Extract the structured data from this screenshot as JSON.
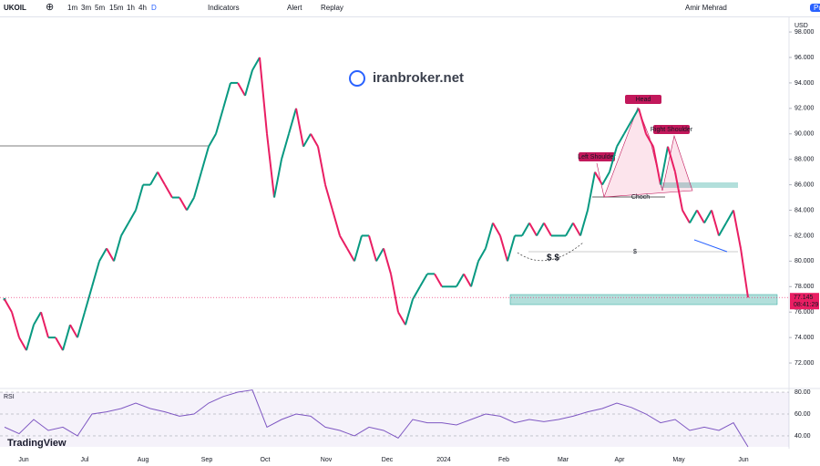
{
  "toolbar": {
    "symbol": "UKOIL",
    "timeframes": [
      "1m",
      "3m",
      "5m",
      "15m",
      "1h",
      "4h",
      "D"
    ],
    "indicators": "Indicators",
    "alert": "Alert",
    "replay": "Replay",
    "user": "Amir Mehrad",
    "publish": "Pu"
  },
  "watermark": "iranbroker.net",
  "brand": "TradingView",
  "chart_data": [
    {
      "type": "line",
      "currency": "USD",
      "up_color": "#089981",
      "down_color": "#e91e63",
      "values": [
        77,
        76,
        74,
        73,
        75,
        76,
        74,
        74,
        73,
        75,
        74,
        76,
        78,
        80,
        81,
        80,
        82,
        83,
        84,
        86,
        86,
        87,
        86,
        85,
        85,
        84,
        85,
        87,
        89,
        90,
        92,
        94,
        94,
        93,
        95,
        96,
        90,
        85,
        88,
        90,
        92,
        89,
        90,
        89,
        86,
        84,
        82,
        81,
        80,
        82,
        82,
        80,
        81,
        79,
        76,
        75,
        77,
        78,
        79,
        79,
        78,
        78,
        78,
        79,
        78,
        80,
        81,
        83,
        82,
        80,
        82,
        82,
        83,
        82,
        83,
        82,
        82,
        82,
        83,
        82,
        84,
        87,
        86,
        87,
        89,
        90,
        91,
        92,
        90,
        89,
        86,
        89,
        87,
        84,
        83,
        84,
        83,
        84,
        82,
        83,
        84,
        81,
        77.145
      ],
      "last_price": 77.145,
      "countdown": "08:41:29",
      "ylim": [
        70.07,
        99.08
      ],
      "yticks": [
        {
          "value": 72,
          "label": "72.000"
        },
        {
          "value": 74,
          "label": "74.000"
        },
        {
          "value": 76,
          "label": "76.000"
        },
        {
          "value": 78,
          "label": "78.000"
        },
        {
          "value": 80,
          "label": "80.000"
        },
        {
          "value": 82,
          "label": "82.000"
        },
        {
          "value": 84,
          "label": "84.000"
        },
        {
          "value": 86,
          "label": "86.000"
        },
        {
          "value": 88,
          "label": "88.000"
        },
        {
          "value": 90,
          "label": "90.000"
        },
        {
          "value": 92,
          "label": "92.000"
        },
        {
          "value": 94,
          "label": "94.000"
        },
        {
          "value": 96,
          "label": "96.000"
        },
        {
          "value": 98,
          "label": "98.000"
        }
      ],
      "x_labels": [
        "Jun",
        "Jul",
        "Aug",
        "Sep",
        "Oct",
        "Nov",
        "Dec",
        "2024",
        "Feb",
        "Mar",
        "Apr",
        "May",
        "Jun"
      ],
      "annotations": [
        "Left Shoulder",
        "Head",
        "Right Shoulder",
        "Choch",
        "$ $",
        "$"
      ]
    },
    {
      "type": "line",
      "title": "RSI",
      "color": "#7e57c2",
      "values": [
        48,
        42,
        55,
        45,
        48,
        40,
        60,
        62,
        65,
        70,
        65,
        62,
        58,
        60,
        70,
        76,
        80,
        82,
        48,
        55,
        60,
        58,
        48,
        45,
        40,
        48,
        45,
        38,
        55,
        52,
        52,
        50,
        55,
        60,
        58,
        52,
        55,
        53,
        55,
        58,
        62,
        65,
        70,
        66,
        60,
        52,
        55,
        45,
        48,
        45,
        52,
        30
      ],
      "ylim": [
        28.3,
        81.7
      ],
      "yticks": [
        {
          "value": 40,
          "label": "40.00"
        },
        {
          "value": 60,
          "label": "60.00"
        },
        {
          "value": 80,
          "label": "80.00"
        }
      ]
    }
  ]
}
